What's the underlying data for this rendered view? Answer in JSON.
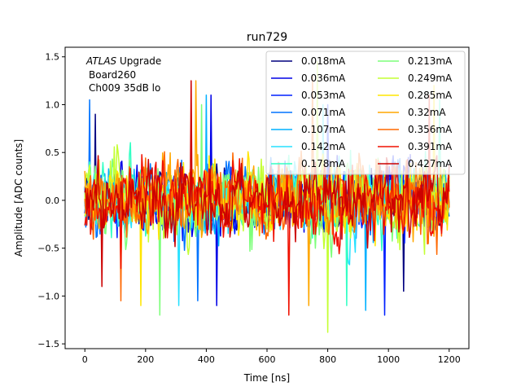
{
  "chart_data": {
    "type": "line",
    "title": "run729",
    "xlabel": "Time [ns]",
    "ylabel": "Amplitude [ADC counts]",
    "xlim": [
      -65,
      1265
    ],
    "ylim": [
      -1.55,
      1.6
    ],
    "xticks": [
      0,
      200,
      400,
      600,
      800,
      1000,
      1200
    ],
    "yticks": [
      -1.5,
      -1.0,
      -0.5,
      0.0,
      0.5,
      1.0,
      1.5
    ],
    "xtick_labels": [
      "0",
      "200",
      "400",
      "600",
      "800",
      "1000",
      "1200"
    ],
    "ytick_labels": [
      "−1.5",
      "−1.0",
      "−0.5",
      "0.0",
      "0.5",
      "1.0",
      "1.5"
    ],
    "grid": false,
    "legend_position": "top-right",
    "legend_columns": 2,
    "annotation": {
      "experiment": "ATLAS",
      "experiment_suffix": " Upgrade",
      "line2": "Board260",
      "line3": "Ch009 35dB lo"
    },
    "x_range": [
      0,
      1200
    ],
    "sample_step_ns": 3.125,
    "series": [
      {
        "name": "0.018mA",
        "color": "#00007f",
        "noise_sigma": 0.2,
        "peak_max": 0.9,
        "peak_min": -0.95
      },
      {
        "name": "0.036mA",
        "color": "#0000e6",
        "noise_sigma": 0.22,
        "peak_max": 1.1,
        "peak_min": -1.1
      },
      {
        "name": "0.053mA",
        "color": "#0020ff",
        "noise_sigma": 0.22,
        "peak_max": 1.0,
        "peak_min": -1.2
      },
      {
        "name": "0.071mA",
        "color": "#0074ff",
        "noise_sigma": 0.23,
        "peak_max": 1.05,
        "peak_min": -1.05
      },
      {
        "name": "0.107mA",
        "color": "#00b0ff",
        "noise_sigma": 0.23,
        "peak_max": 1.1,
        "peak_min": -1.15
      },
      {
        "name": "0.142mA",
        "color": "#26e0ff",
        "noise_sigma": 0.24,
        "peak_max": 1.0,
        "peak_min": -1.1
      },
      {
        "name": "0.178mA",
        "color": "#33ffc4",
        "noise_sigma": 0.24,
        "peak_max": 1.05,
        "peak_min": -1.1
      },
      {
        "name": "0.213mA",
        "color": "#7dff7a",
        "noise_sigma": 0.25,
        "peak_max": 1.0,
        "peak_min": -1.2
      },
      {
        "name": "0.249mA",
        "color": "#c4ff33",
        "noise_sigma": 0.25,
        "peak_max": 1.45,
        "peak_min": -1.38
      },
      {
        "name": "0.285mA",
        "color": "#ffe500",
        "noise_sigma": 0.25,
        "peak_max": 1.2,
        "peak_min": -1.1
      },
      {
        "name": "0.32mA",
        "color": "#ffa700",
        "noise_sigma": 0.25,
        "peak_max": 1.25,
        "peak_min": -1.1
      },
      {
        "name": "0.356mA",
        "color": "#ff6800",
        "noise_sigma": 0.26,
        "peak_max": 1.3,
        "peak_min": -1.05
      },
      {
        "name": "0.391mA",
        "color": "#f01000",
        "noise_sigma": 0.26,
        "peak_max": 1.1,
        "peak_min": -1.2
      },
      {
        "name": "0.427mA",
        "color": "#cc0000",
        "noise_sigma": 0.25,
        "peak_max": 1.25,
        "peak_min": -0.9
      }
    ]
  }
}
